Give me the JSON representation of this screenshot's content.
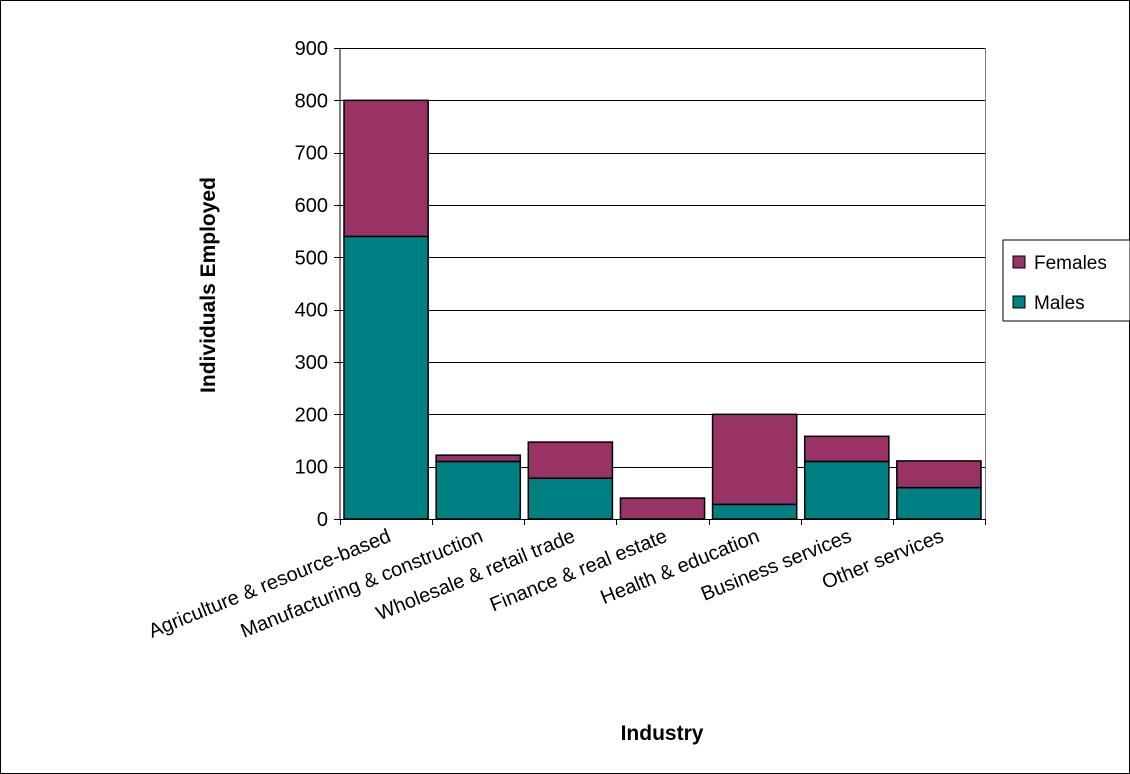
{
  "chart_data": {
    "type": "bar",
    "stacked": true,
    "title": "",
    "xlabel": "Industry",
    "ylabel": "Individuals Employed",
    "ylim": [
      0,
      900
    ],
    "yticks": [
      0,
      100,
      200,
      300,
      400,
      500,
      600,
      700,
      800,
      900
    ],
    "grid": true,
    "legend_position": "right",
    "categories": [
      "Agriculture & resource-based",
      "Manufacturing & construction",
      "Wholesale & retail trade",
      "Finance & real estate",
      "Health & education",
      "Business services",
      "Other services"
    ],
    "series": [
      {
        "name": "Males",
        "color": "#008080",
        "values": [
          540,
          110,
          78,
          0,
          28,
          110,
          60
        ]
      },
      {
        "name": "Females",
        "color": "#993366",
        "values": [
          260,
          12,
          69,
          40,
          172,
          48,
          51
        ]
      }
    ],
    "legend_order": [
      "Females",
      "Males"
    ]
  }
}
